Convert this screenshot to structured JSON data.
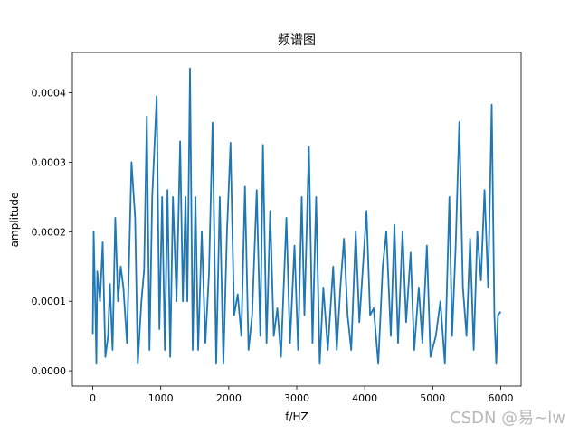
{
  "chart_data": {
    "type": "line",
    "title": "频谱图",
    "xlabel": "f/HZ",
    "ylabel": "amplitude",
    "x": [
      0,
      13,
      40,
      53,
      66,
      106,
      146,
      185,
      225,
      252,
      291,
      331,
      371,
      411,
      450,
      503,
      570,
      623,
      662,
      715,
      755,
      795,
      834,
      874,
      940,
      980,
      1020,
      1060,
      1099,
      1139,
      1179,
      1232,
      1285,
      1325,
      1364,
      1391,
      1430,
      1470,
      1510,
      1550,
      1603,
      1656,
      1709,
      1762,
      1815,
      1868,
      1921,
      1974,
      2026,
      2079,
      2132,
      2185,
      2238,
      2291,
      2344,
      2411,
      2464,
      2503,
      2556,
      2609,
      2662,
      2715,
      2768,
      2848,
      2901,
      2967,
      3020,
      3073,
      3113,
      3179,
      3232,
      3285,
      3338,
      3391,
      3457,
      3536,
      3589,
      3642,
      3695,
      3748,
      3801,
      3868,
      3921,
      3974,
      4026,
      4079,
      4132,
      4199,
      4265,
      4318,
      4384,
      4437,
      4490,
      4556,
      4609,
      4675,
      4728,
      4795,
      4848,
      4914,
      4967,
      5046,
      5113,
      5179,
      5245,
      5285,
      5338,
      5391,
      5444,
      5497,
      5550,
      5603,
      5656,
      5709,
      5762,
      5815,
      5868,
      5907,
      5934,
      5960,
      6000
    ],
    "values": [
      5.3e-05,
      0.0002,
      8e-05,
      1e-05,
      0.000143,
      0.0001,
      0.000185,
      2e-05,
      5e-05,
      0.000125,
      3e-05,
      0.00022,
      0.0001,
      0.00015,
      0.00012,
      4e-05,
      0.0003,
      0.00022,
      1e-05,
      0.0001,
      0.000145,
      0.000366,
      3e-05,
      0.00025,
      0.000395,
      6e-05,
      0.00025,
      3e-05,
      0.00026,
      2e-05,
      0.00025,
      0.0001,
      0.00033,
      0.0001,
      0.00025,
      0.0001,
      0.000435,
      3e-05,
      0.00025,
      3e-05,
      0.0002,
      4e-05,
      0.00014,
      0.000357,
      1e-05,
      0.00025,
      1e-05,
      0.0002,
      0.000328,
      8e-05,
      0.00011,
      5e-05,
      0.000265,
      3e-05,
      8e-05,
      0.00026,
      5e-05,
      0.000325,
      4e-05,
      0.00023,
      5e-05,
      9e-05,
      2e-05,
      0.00022,
      4e-05,
      0.00018,
      3e-05,
      0.00025,
      8e-05,
      0.000322,
      4e-05,
      0.00025,
      1e-05,
      0.00012,
      3e-05,
      0.00015,
      3e-05,
      0.00012,
      0.00019,
      8e-05,
      3e-05,
      0.0002,
      7e-05,
      0.00015,
      0.00023,
      8e-05,
      9e-05,
      1e-05,
      0.00015,
      0.0002,
      5e-05,
      0.00021,
      4e-05,
      0.0002,
      7e-05,
      0.00017,
      3e-05,
      0.00012,
      4e-05,
      0.00018,
      2e-05,
      5e-05,
      0.0001,
      1e-05,
      0.00025,
      5e-05,
      0.00018,
      0.000358,
      0.00012,
      5e-05,
      0.00019,
      3e-05,
      0.0002,
      0.00013,
      0.00026,
      0.00012,
      0.000383,
      8e-05,
      1e-05,
      8e-05,
      8.5e-05
    ],
    "color": "#1f77b4",
    "xlim": [
      -300,
      6300
    ],
    "xticks": [
      0,
      1000,
      2000,
      3000,
      4000,
      5000,
      6000
    ],
    "ylim": [
      -2.2e-05,
      0.000458
    ],
    "yticks": [
      {
        "value": 0,
        "label": "0.0000"
      },
      {
        "value": 0.0001,
        "label": "0.0001"
      },
      {
        "value": 0.0002,
        "label": "0.0002"
      },
      {
        "value": 0.0003,
        "label": "0.0003"
      },
      {
        "value": 0.0004,
        "label": "0.0004"
      }
    ]
  },
  "watermark": "CSDN @易~lw"
}
